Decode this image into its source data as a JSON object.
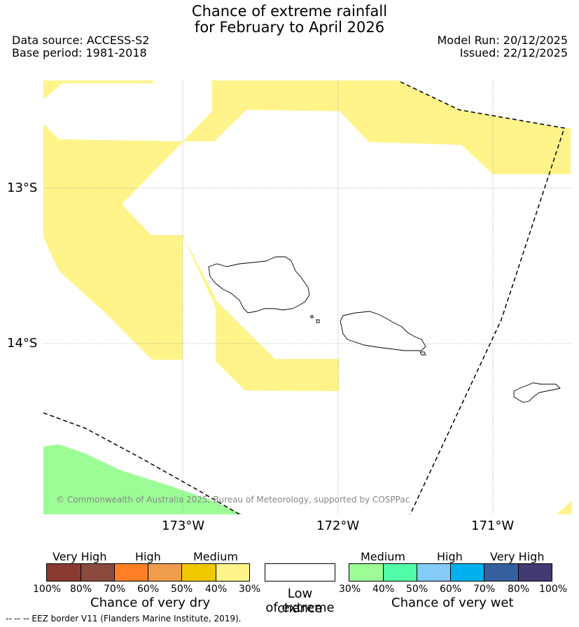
{
  "title": {
    "line1": "Chance of extreme rainfall",
    "line2": "for February to April 2026"
  },
  "meta": {
    "data_source": "Data source: ACCESS-S2",
    "base_period": "Base period: 1981-2018",
    "model_run": "Model Run: 20/12/2025",
    "issued": "Issued: 22/12/2025"
  },
  "map": {
    "lat_labels": [
      "13°S",
      "14°S"
    ],
    "lon_labels": [
      "173°W",
      "172°W",
      "171°W"
    ],
    "copyright": "© Commonwealth of Australia 2025, Bureau of Meteorology, supported by COSPPac"
  },
  "legend": {
    "dry": {
      "categories": [
        "Very High",
        "High",
        "Medium"
      ],
      "ticks": [
        "100%",
        "80%",
        "70%",
        "60%",
        "50%",
        "40%",
        "30%"
      ],
      "title": "Chance of very dry",
      "colors": [
        "#8b3a32",
        "#8b4a3c",
        "#ff7f27",
        "#ef9c4b",
        "#f0c800",
        "#fef48a"
      ]
    },
    "low": {
      "title_line1": "Low chance",
      "title_line2": "of extreme"
    },
    "wet": {
      "categories": [
        "Medium",
        "High",
        "Very High"
      ],
      "ticks": [
        "30%",
        "40%",
        "50%",
        "60%",
        "70%",
        "80%",
        "100%"
      ],
      "title": "Chance of very wet",
      "colors": [
        "#9cfd96",
        "#53fca6",
        "#84cbf8",
        "#00b0ef",
        "#36609d",
        "#413a73"
      ]
    }
  },
  "footer": "--  --  -- EEZ border V11 (Flanders Marine Institute, 2019)."
}
